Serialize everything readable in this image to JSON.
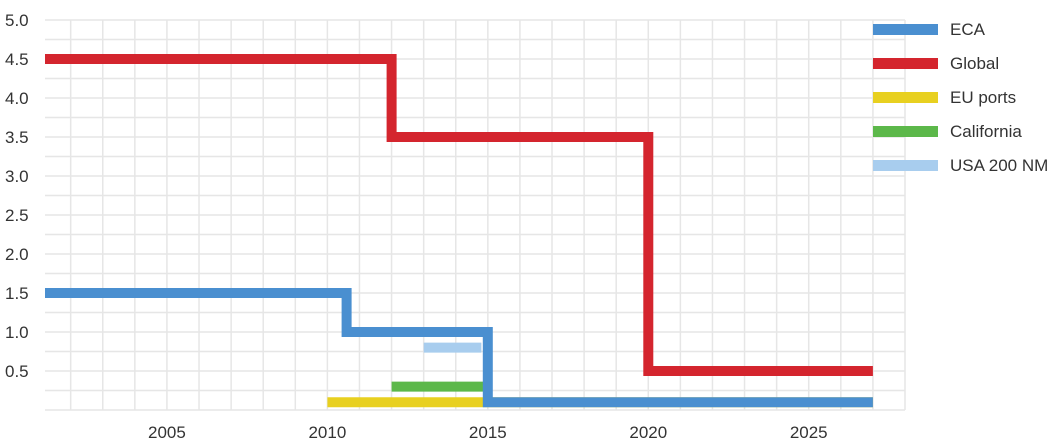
{
  "chart_data": {
    "type": "line",
    "step": true,
    "xlim": [
      2001.2,
      2028
    ],
    "ylim": [
      0,
      5.0
    ],
    "x_ticks": [
      2005,
      2010,
      2015,
      2020,
      2025
    ],
    "y_ticks": [
      0.5,
      1.0,
      1.5,
      2.0,
      2.5,
      3.0,
      3.5,
      4.0,
      4.5,
      5.0
    ],
    "x_tick_labels": [
      "2005",
      "2010",
      "2015",
      "2020",
      "2025"
    ],
    "y_tick_labels": [
      "0.5",
      "1.0",
      "1.5",
      "2.0",
      "2.5",
      "3.0",
      "3.5",
      "4.0",
      "4.5",
      "5.0"
    ],
    "grid": true,
    "legend_position": "top-right",
    "series": [
      {
        "name": "ECA",
        "color": "#4a8fd0",
        "x": [
          2001.2,
          2010.6,
          2010.6,
          2015.0,
          2015.0,
          2027
        ],
        "y": [
          1.5,
          1.5,
          1.0,
          1.0,
          0.1,
          0.1
        ]
      },
      {
        "name": "Global",
        "color": "#d4252e",
        "x": [
          2001.2,
          2012.0,
          2012.0,
          2020.0,
          2020.0,
          2027
        ],
        "y": [
          4.5,
          4.5,
          3.5,
          3.5,
          0.5,
          0.5
        ]
      },
      {
        "name": "EU ports",
        "color": "#e8d020",
        "x": [
          2010.0,
          2027
        ],
        "y": [
          0.1,
          0.1
        ]
      },
      {
        "name": "California",
        "color": "#5cb84a",
        "x": [
          2012.0,
          2015.0
        ],
        "y": [
          0.3,
          0.3
        ]
      },
      {
        "name": "USA 200 NM",
        "color": "#a8cdee",
        "x": [
          2013.0,
          2014.8
        ],
        "y": [
          0.8,
          0.8
        ]
      }
    ]
  }
}
